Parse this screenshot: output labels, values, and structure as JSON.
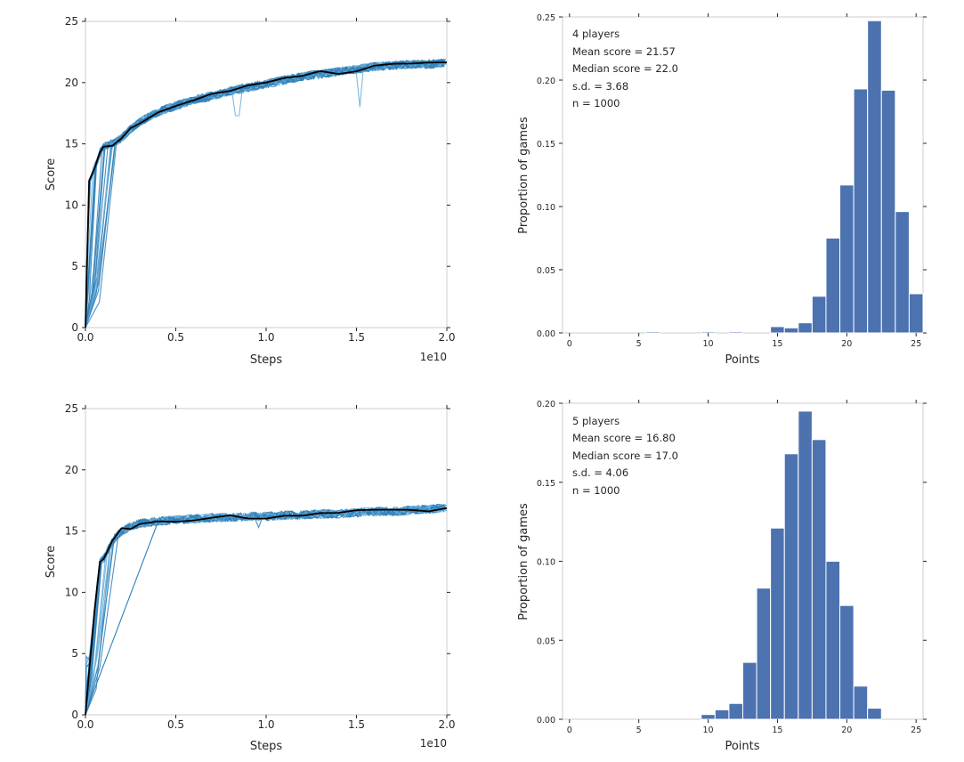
{
  "colors": {
    "run_line": "#2e7fb8",
    "run_line_light": "#6aaed6",
    "mean_line": "#000000",
    "bar_fill": "#4c72b0",
    "bar_edge": "#ffffff",
    "axis": "#cccccc",
    "text": "#262626"
  },
  "chart_data": [
    {
      "type": "line",
      "xlabel": "Steps",
      "ylabel": "Score",
      "xlim": [
        0,
        2.0
      ],
      "ylim": [
        0,
        25
      ],
      "x_multiplier_label": "1e10",
      "xticks": [
        "0.0",
        "0.5",
        "1.0",
        "1.5",
        "2.0"
      ],
      "yticks": [
        "0",
        "5",
        "10",
        "15",
        "20",
        "25"
      ],
      "grid": false,
      "description_series": [
        {
          "name": "",
          "role": "mean",
          "x": [
            0.0,
            0.02,
            0.05,
            0.08,
            0.1,
            0.15,
            0.2,
            0.25,
            0.3,
            0.4,
            0.5,
            0.6,
            0.7,
            0.8,
            0.9,
            1.0,
            1.1,
            1.2,
            1.3,
            1.4,
            1.5,
            1.6,
            1.7,
            1.8,
            1.9,
            2.0
          ],
          "y": [
            0.0,
            12.0,
            13.0,
            14.3,
            14.8,
            15.0,
            15.5,
            16.2,
            16.8,
            17.6,
            18.1,
            18.6,
            18.9,
            19.3,
            19.6,
            19.9,
            20.2,
            20.5,
            20.7,
            20.9,
            21.1,
            21.3,
            21.4,
            21.5,
            21.5,
            21.6
          ]
        }
      ]
    },
    {
      "type": "bar",
      "xlabel": "Points",
      "ylabel": "Proportion of games",
      "xlim": [
        -0.5,
        25.5
      ],
      "ylim": [
        0,
        0.25
      ],
      "xticks": [
        "0",
        "5",
        "10",
        "15",
        "20",
        "25"
      ],
      "yticks": [
        "0.00",
        "0.05",
        "0.10",
        "0.15",
        "0.20",
        "0.25"
      ],
      "annotations": [
        "4 players",
        "Mean score = 21.57",
        "Median score = 22.0",
        "s.d. = 3.68",
        "n = 1000"
      ],
      "categories": [
        6,
        10,
        12,
        15,
        16,
        17,
        18,
        19,
        20,
        21,
        22,
        23,
        24,
        25
      ],
      "values": [
        0.001,
        0.001,
        0.001,
        0.005,
        0.004,
        0.008,
        0.029,
        0.075,
        0.117,
        0.193,
        0.247,
        0.192,
        0.096,
        0.031
      ]
    },
    {
      "type": "line",
      "xlabel": "Steps",
      "ylabel": "Score",
      "xlim": [
        0,
        2.0
      ],
      "ylim": [
        0,
        25
      ],
      "x_multiplier_label": "1e10",
      "xticks": [
        "0.0",
        "0.5",
        "1.0",
        "1.5",
        "2.0"
      ],
      "yticks": [
        "0",
        "5",
        "10",
        "15",
        "20",
        "25"
      ],
      "grid": false,
      "description_series": [
        {
          "name": "",
          "role": "mean",
          "x": [
            0.0,
            0.02,
            0.05,
            0.08,
            0.1,
            0.15,
            0.2,
            0.25,
            0.3,
            0.4,
            0.5,
            0.6,
            0.7,
            0.8,
            0.9,
            1.0,
            1.1,
            1.2,
            1.3,
            1.4,
            1.5,
            1.6,
            1.7,
            1.8,
            1.9,
            2.0
          ],
          "y": [
            0.0,
            3.5,
            8.5,
            12.5,
            12.7,
            14.2,
            15.0,
            15.4,
            15.6,
            15.8,
            15.9,
            16.0,
            16.1,
            16.1,
            16.2,
            16.2,
            16.3,
            16.3,
            16.4,
            16.4,
            16.5,
            16.6,
            16.6,
            16.7,
            16.8,
            16.9
          ]
        }
      ]
    },
    {
      "type": "bar",
      "xlabel": "Points",
      "ylabel": "Proportion of games",
      "xlim": [
        -0.5,
        25.5
      ],
      "ylim": [
        0,
        0.2
      ],
      "xticks": [
        "0",
        "5",
        "10",
        "15",
        "20",
        "25"
      ],
      "yticks": [
        "0.00",
        "0.05",
        "0.10",
        "0.15",
        "0.20"
      ],
      "annotations": [
        "5 players",
        "Mean score = 16.80",
        "Median score = 17.0",
        "s.d. = 4.06",
        "n = 1000"
      ],
      "categories": [
        10,
        11,
        12,
        13,
        14,
        15,
        16,
        17,
        18,
        19,
        20,
        21,
        22
      ],
      "values": [
        0.003,
        0.006,
        0.01,
        0.036,
        0.083,
        0.121,
        0.168,
        0.195,
        0.177,
        0.1,
        0.072,
        0.021,
        0.007
      ]
    }
  ]
}
